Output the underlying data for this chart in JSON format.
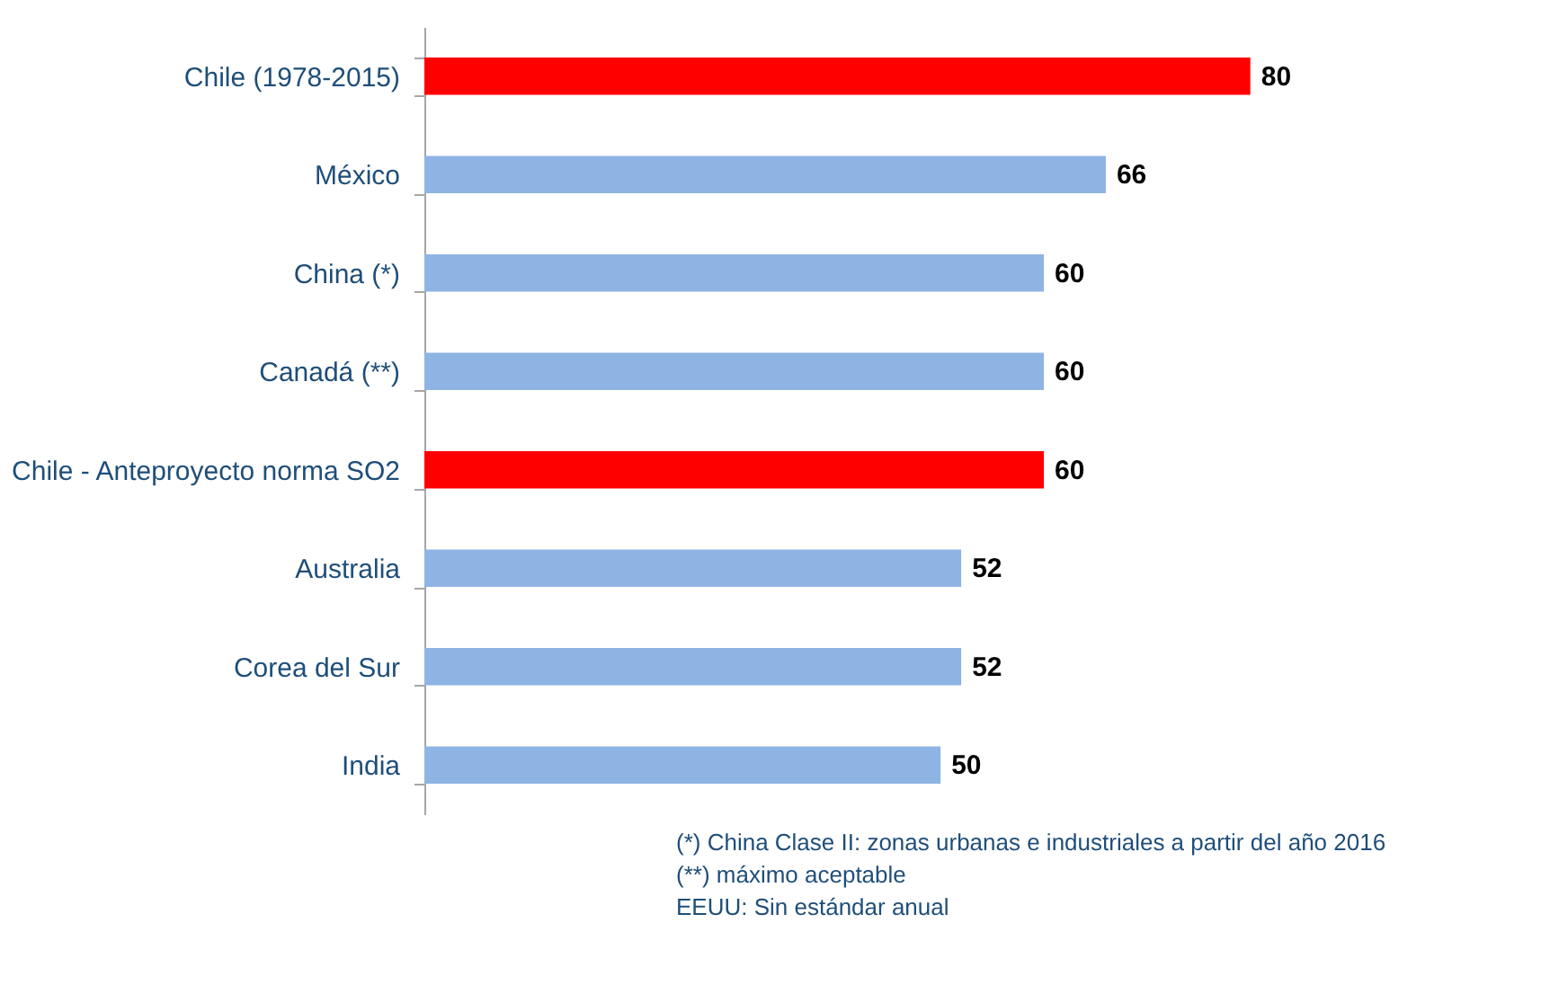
{
  "chart_data": {
    "type": "bar",
    "orientation": "horizontal",
    "categories": [
      "Chile (1978-2015)",
      "México",
      "China (*)",
      "Canadá (**)",
      "Chile - Anteproyecto norma SO2",
      "Australia",
      "Corea del Sur",
      "India"
    ],
    "values": [
      80,
      66,
      60,
      60,
      60,
      52,
      52,
      50
    ],
    "colors": [
      "#ff0000",
      "#8eb4e3",
      "#8eb4e3",
      "#8eb4e3",
      "#ff0000",
      "#8eb4e3",
      "#8eb4e3",
      "#8eb4e3"
    ],
    "data_labels": true,
    "grid": false,
    "annotations": [
      "(*) China Clase II: zonas urbanas e industriales a partir del año 2016",
      "(**) máximo aceptable",
      "EEUU: Sin estándar anual"
    ]
  }
}
